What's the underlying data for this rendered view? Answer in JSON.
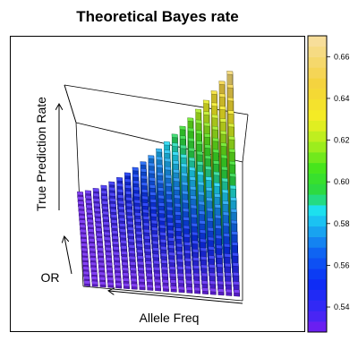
{
  "chart_data": {
    "type": "3d-bar",
    "title": "Theoretical Bayes rate",
    "xlabel": "Allele Freq",
    "ylabel": "OR",
    "zlabel": "True Prediction Rate",
    "zlim": [
      0.528,
      0.67
    ],
    "grid_size": 20,
    "model": "z = 0.53 + 0.138 * allele_freq^1.6 * odds_ratio^1.3 (normalized allele frequency and OR on the 20x20 grid)",
    "colorbar": {
      "ticks": [
        0.54,
        0.56,
        0.58,
        0.6,
        0.62,
        0.64,
        0.66
      ],
      "tick_labels": [
        "0.54",
        "0.56",
        "0.58",
        "0.60",
        "0.62",
        "0.64",
        "0.66"
      ],
      "range": [
        0.528,
        0.67
      ],
      "stops": [
        {
          "v": 0.528,
          "color": "#7a1cf0"
        },
        {
          "v": 0.538,
          "color": "#3a28f5"
        },
        {
          "v": 0.552,
          "color": "#0b2cf5"
        },
        {
          "v": 0.566,
          "color": "#0f64f2"
        },
        {
          "v": 0.578,
          "color": "#1aaef0"
        },
        {
          "v": 0.586,
          "color": "#1de0f5"
        },
        {
          "v": 0.594,
          "color": "#27d84a"
        },
        {
          "v": 0.606,
          "color": "#42e41c"
        },
        {
          "v": 0.618,
          "color": "#a6ee1d"
        },
        {
          "v": 0.63,
          "color": "#f4ee22"
        },
        {
          "v": 0.646,
          "color": "#f4d23a"
        },
        {
          "v": 0.67,
          "color": "#f7dfa5"
        }
      ]
    }
  }
}
